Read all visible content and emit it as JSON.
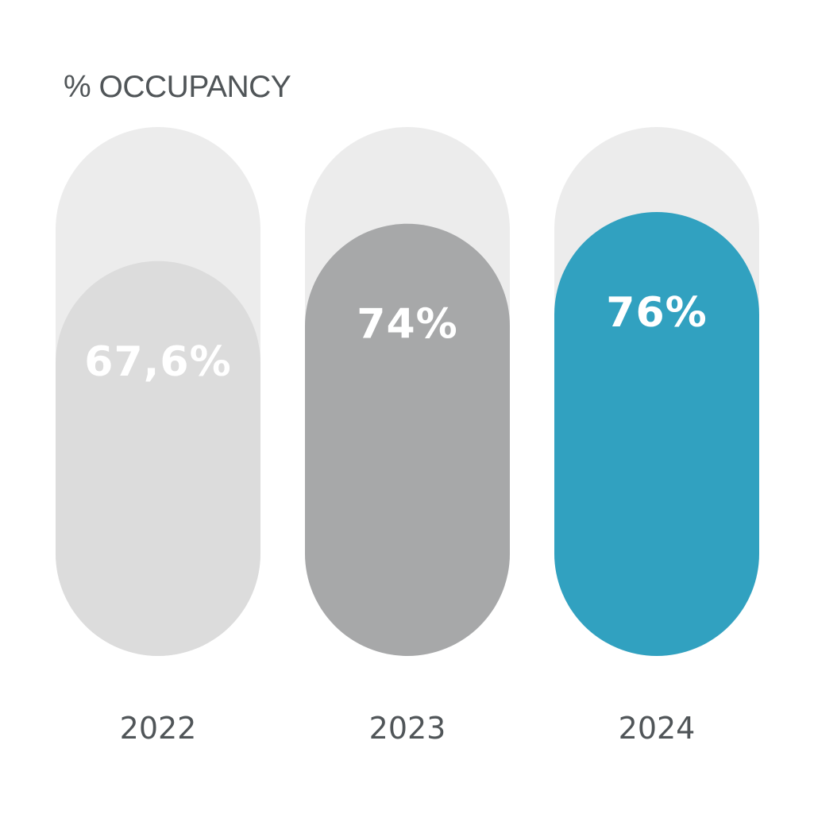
{
  "chart_data": {
    "type": "bar",
    "title": "% OCCUPANCY",
    "xlabel": "",
    "ylabel": "",
    "categories": [
      "2022",
      "2023",
      "2024"
    ],
    "values": [
      67.6,
      74,
      76
    ],
    "value_labels": [
      "67,6%",
      "74%",
      "76%"
    ],
    "ylim": [
      0,
      100
    ],
    "grid": false,
    "legend": "none",
    "colors": {
      "track": "#ececec",
      "bars": [
        "#dcdcdc",
        "#a7a8a9",
        "#31a1c0"
      ],
      "value_text": "#ffffff",
      "axis_text": "#505558",
      "title_text": "#505558"
    }
  }
}
